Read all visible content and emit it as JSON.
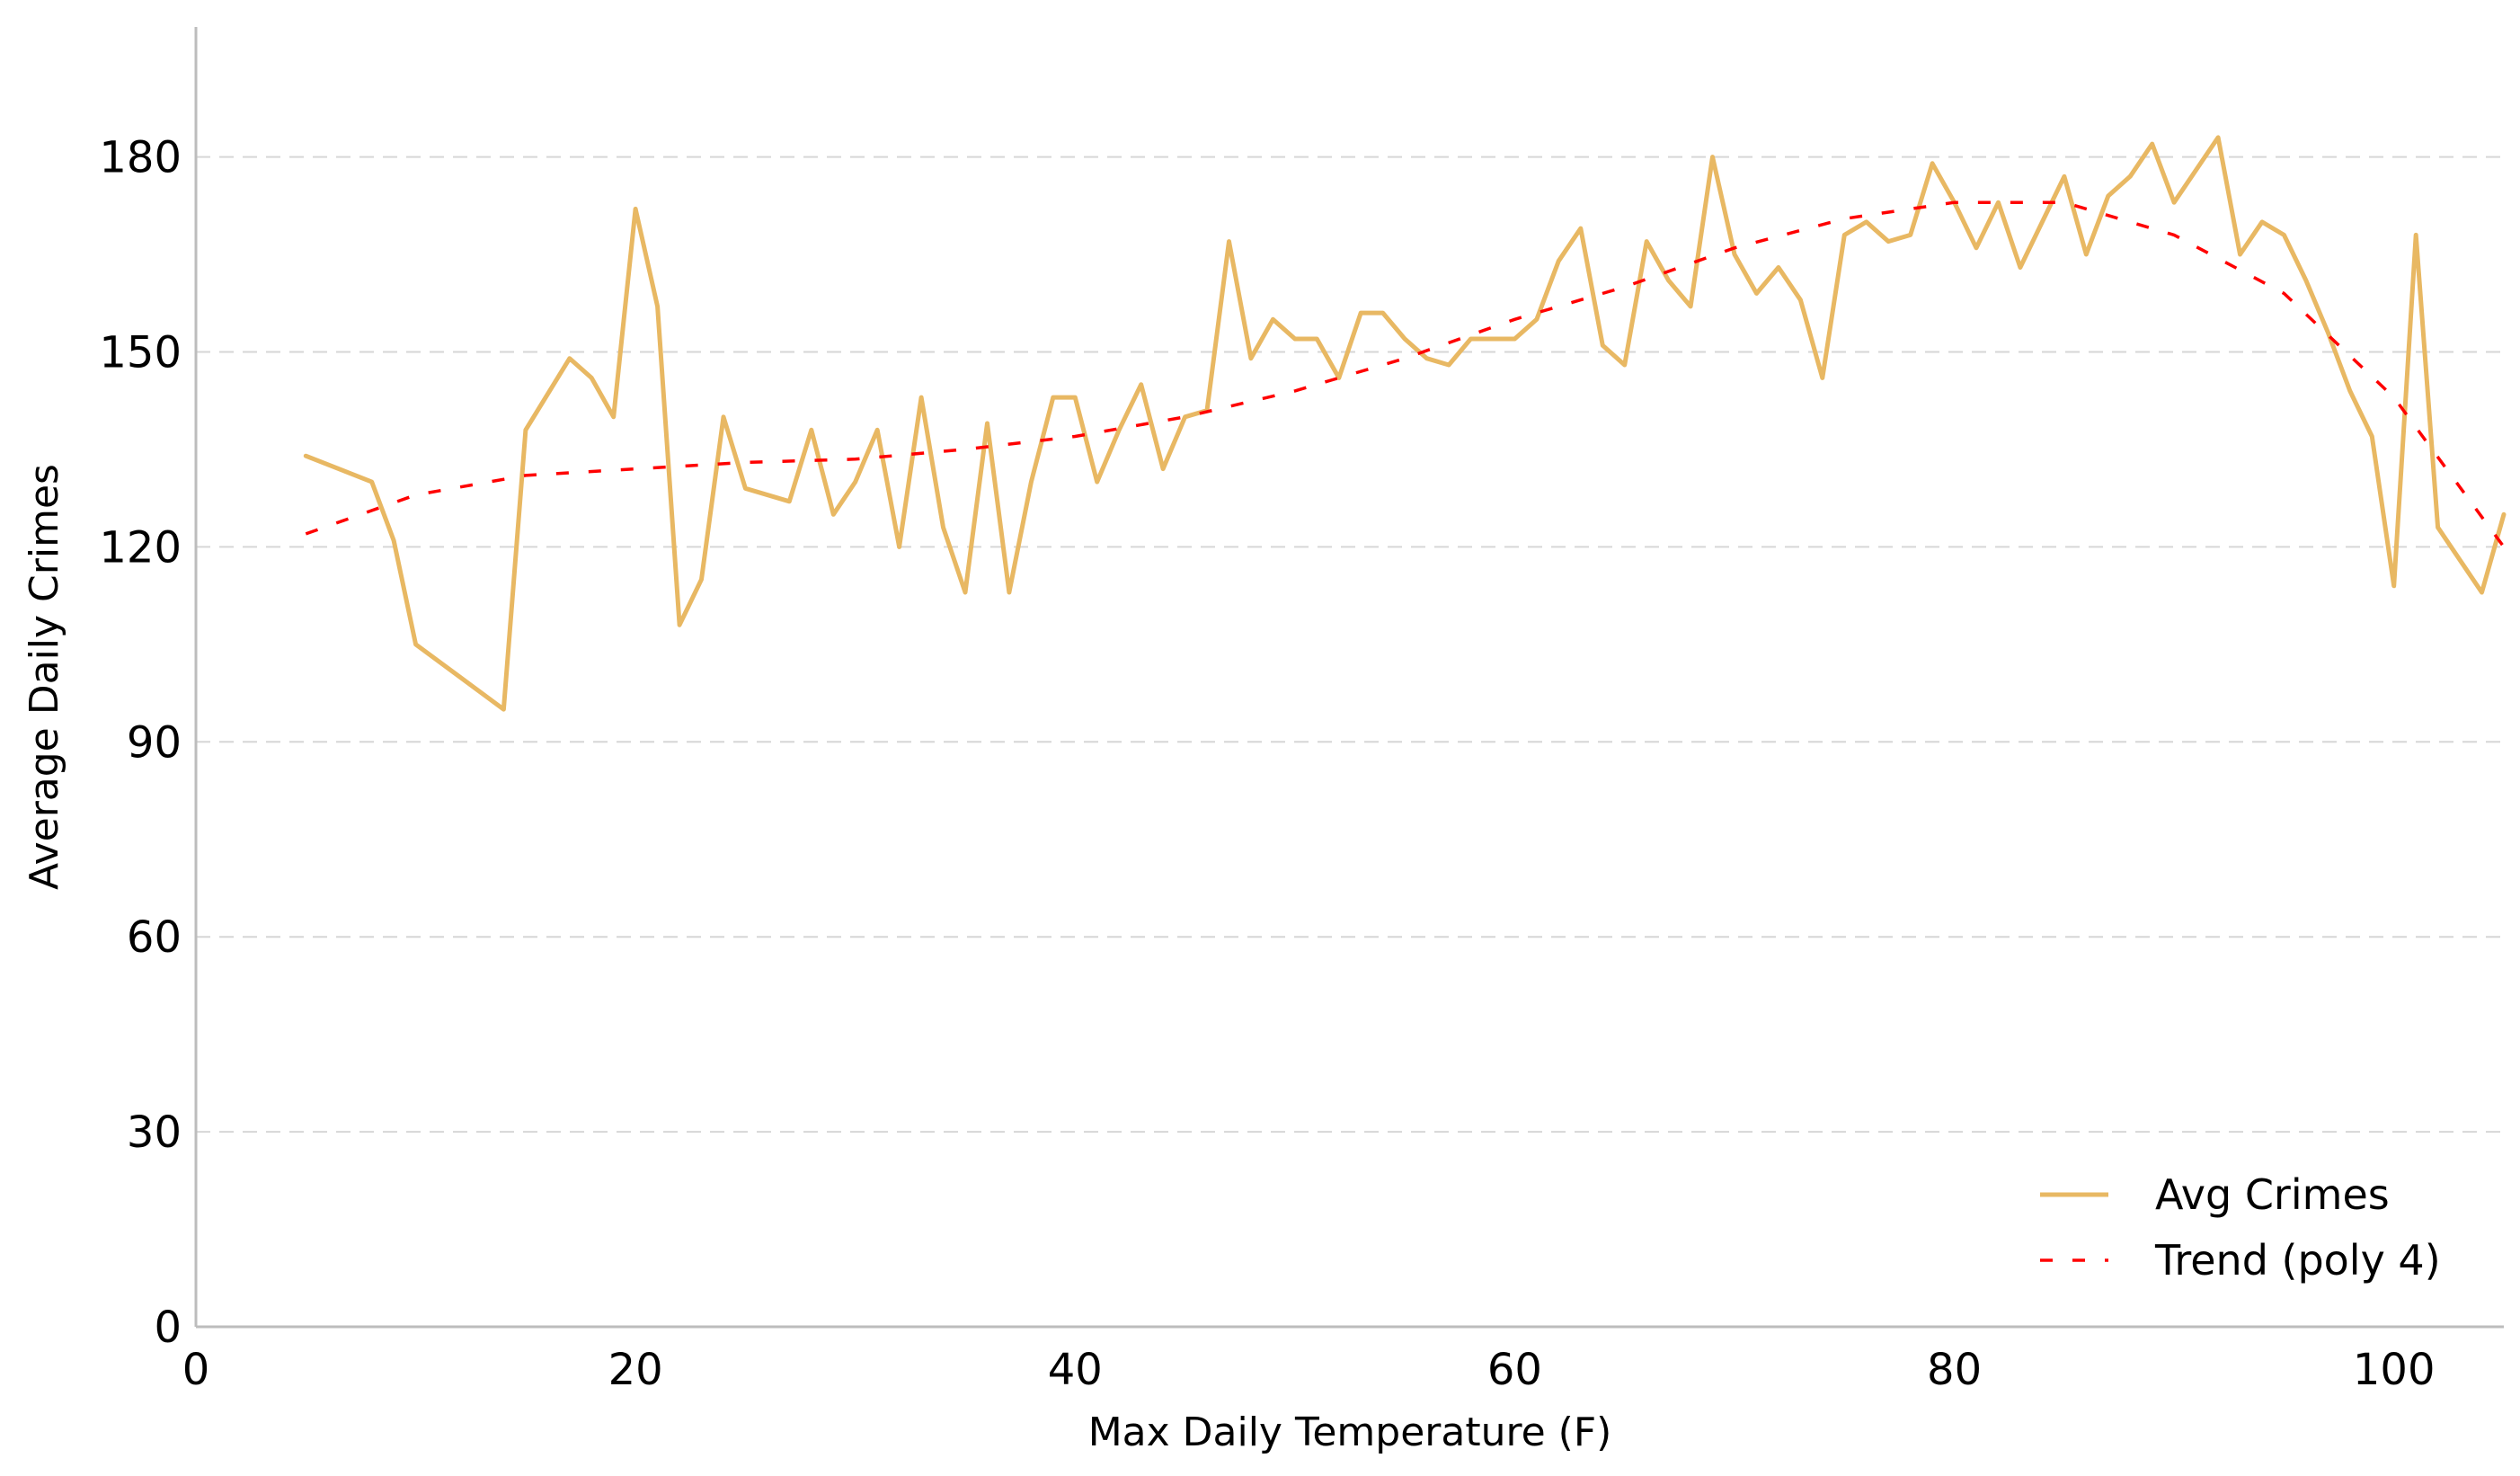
{
  "chart_data": {
    "type": "line",
    "xlabel": "Max Daily Temperature (F)",
    "ylabel": "Average Daily Crimes",
    "xlim": [
      0,
      105
    ],
    "ylim": [
      0,
      200
    ],
    "xticks": [
      0,
      20,
      40,
      60,
      80,
      100
    ],
    "yticks": [
      0,
      30,
      60,
      90,
      120,
      150,
      180
    ],
    "grid": "horizontal dashed",
    "legend_position": "bottom-right",
    "series": [
      {
        "name": "Avg Crimes",
        "color": "#E8B863",
        "style": "solid",
        "x": [
          5,
          8,
          9,
          10,
          14,
          15,
          17,
          18,
          19,
          20,
          21,
          22,
          23,
          24,
          25,
          27,
          28,
          29,
          30,
          31,
          32,
          33,
          34,
          35,
          36,
          37,
          38,
          39,
          40,
          41,
          42,
          43,
          44,
          45,
          46,
          47,
          48,
          49,
          50,
          51,
          52,
          53,
          54,
          55,
          56,
          57,
          58,
          59,
          60,
          61,
          62,
          63,
          64,
          65,
          66,
          67,
          68,
          69,
          70,
          71,
          72,
          73,
          74,
          75,
          76,
          77,
          78,
          79,
          80,
          81,
          82,
          83,
          84,
          85,
          86,
          87,
          88,
          89,
          90,
          92,
          93,
          94,
          95,
          96,
          97,
          98,
          99,
          100,
          101,
          102,
          104,
          105
        ],
        "y": [
          134,
          130,
          121,
          105,
          95,
          138,
          149,
          146,
          140,
          172,
          157,
          108,
          115,
          140,
          129,
          127,
          138,
          125,
          130,
          138,
          120,
          143,
          123,
          113,
          139,
          113,
          130,
          143,
          143,
          130,
          138,
          145,
          132,
          140,
          141,
          167,
          149,
          155,
          152,
          152,
          146,
          156,
          156,
          152,
          149,
          148,
          152,
          152,
          152,
          155,
          164,
          169,
          151,
          148,
          167,
          161,
          157,
          180,
          165,
          159,
          163,
          158,
          146,
          168,
          170,
          167,
          168,
          179,
          173,
          166,
          173,
          163,
          170,
          177,
          165,
          174,
          177,
          182,
          173,
          183,
          165,
          170,
          168,
          161,
          153,
          144,
          137,
          114,
          168,
          123,
          113,
          125
        ]
      },
      {
        "name": "Trend (poly 4)",
        "color": "#FF0000",
        "style": "dashed",
        "x": [
          5,
          10,
          15,
          20,
          25,
          30,
          35,
          40,
          45,
          50,
          55,
          60,
          65,
          70,
          75,
          80,
          85,
          90,
          95,
          100,
          105
        ],
        "y": [
          122,
          128,
          131,
          132,
          133,
          133.5,
          135,
          137,
          140,
          144,
          149,
          155,
          160,
          166,
          170.5,
          173,
          173,
          168,
          159,
          143,
          120
        ]
      }
    ]
  }
}
